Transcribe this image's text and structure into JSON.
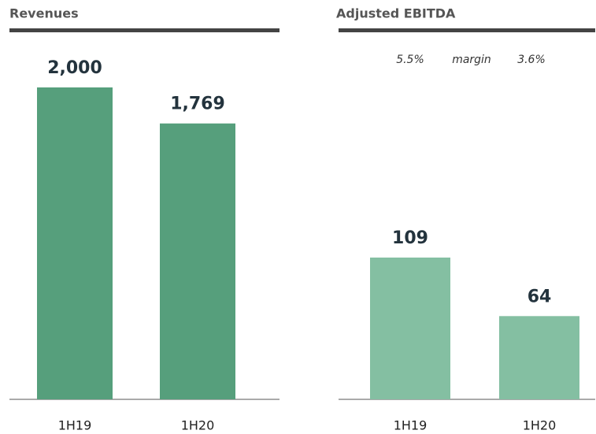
{
  "chart_data": [
    {
      "type": "bar",
      "title": "Revenues",
      "categories": [
        "1H19",
        "1H20"
      ],
      "values": [
        2000,
        1769
      ],
      "value_labels": [
        "2,000",
        "1,769"
      ],
      "color": "#569f7c"
    },
    {
      "type": "bar",
      "title": "Adjusted EBITDA",
      "categories": [
        "1H19",
        "1H20"
      ],
      "values": [
        109,
        64
      ],
      "value_labels": [
        "109",
        "64"
      ],
      "color": "#84bfa2",
      "annotations": [
        "5.5%",
        "margin",
        "3.6%"
      ]
    }
  ]
}
